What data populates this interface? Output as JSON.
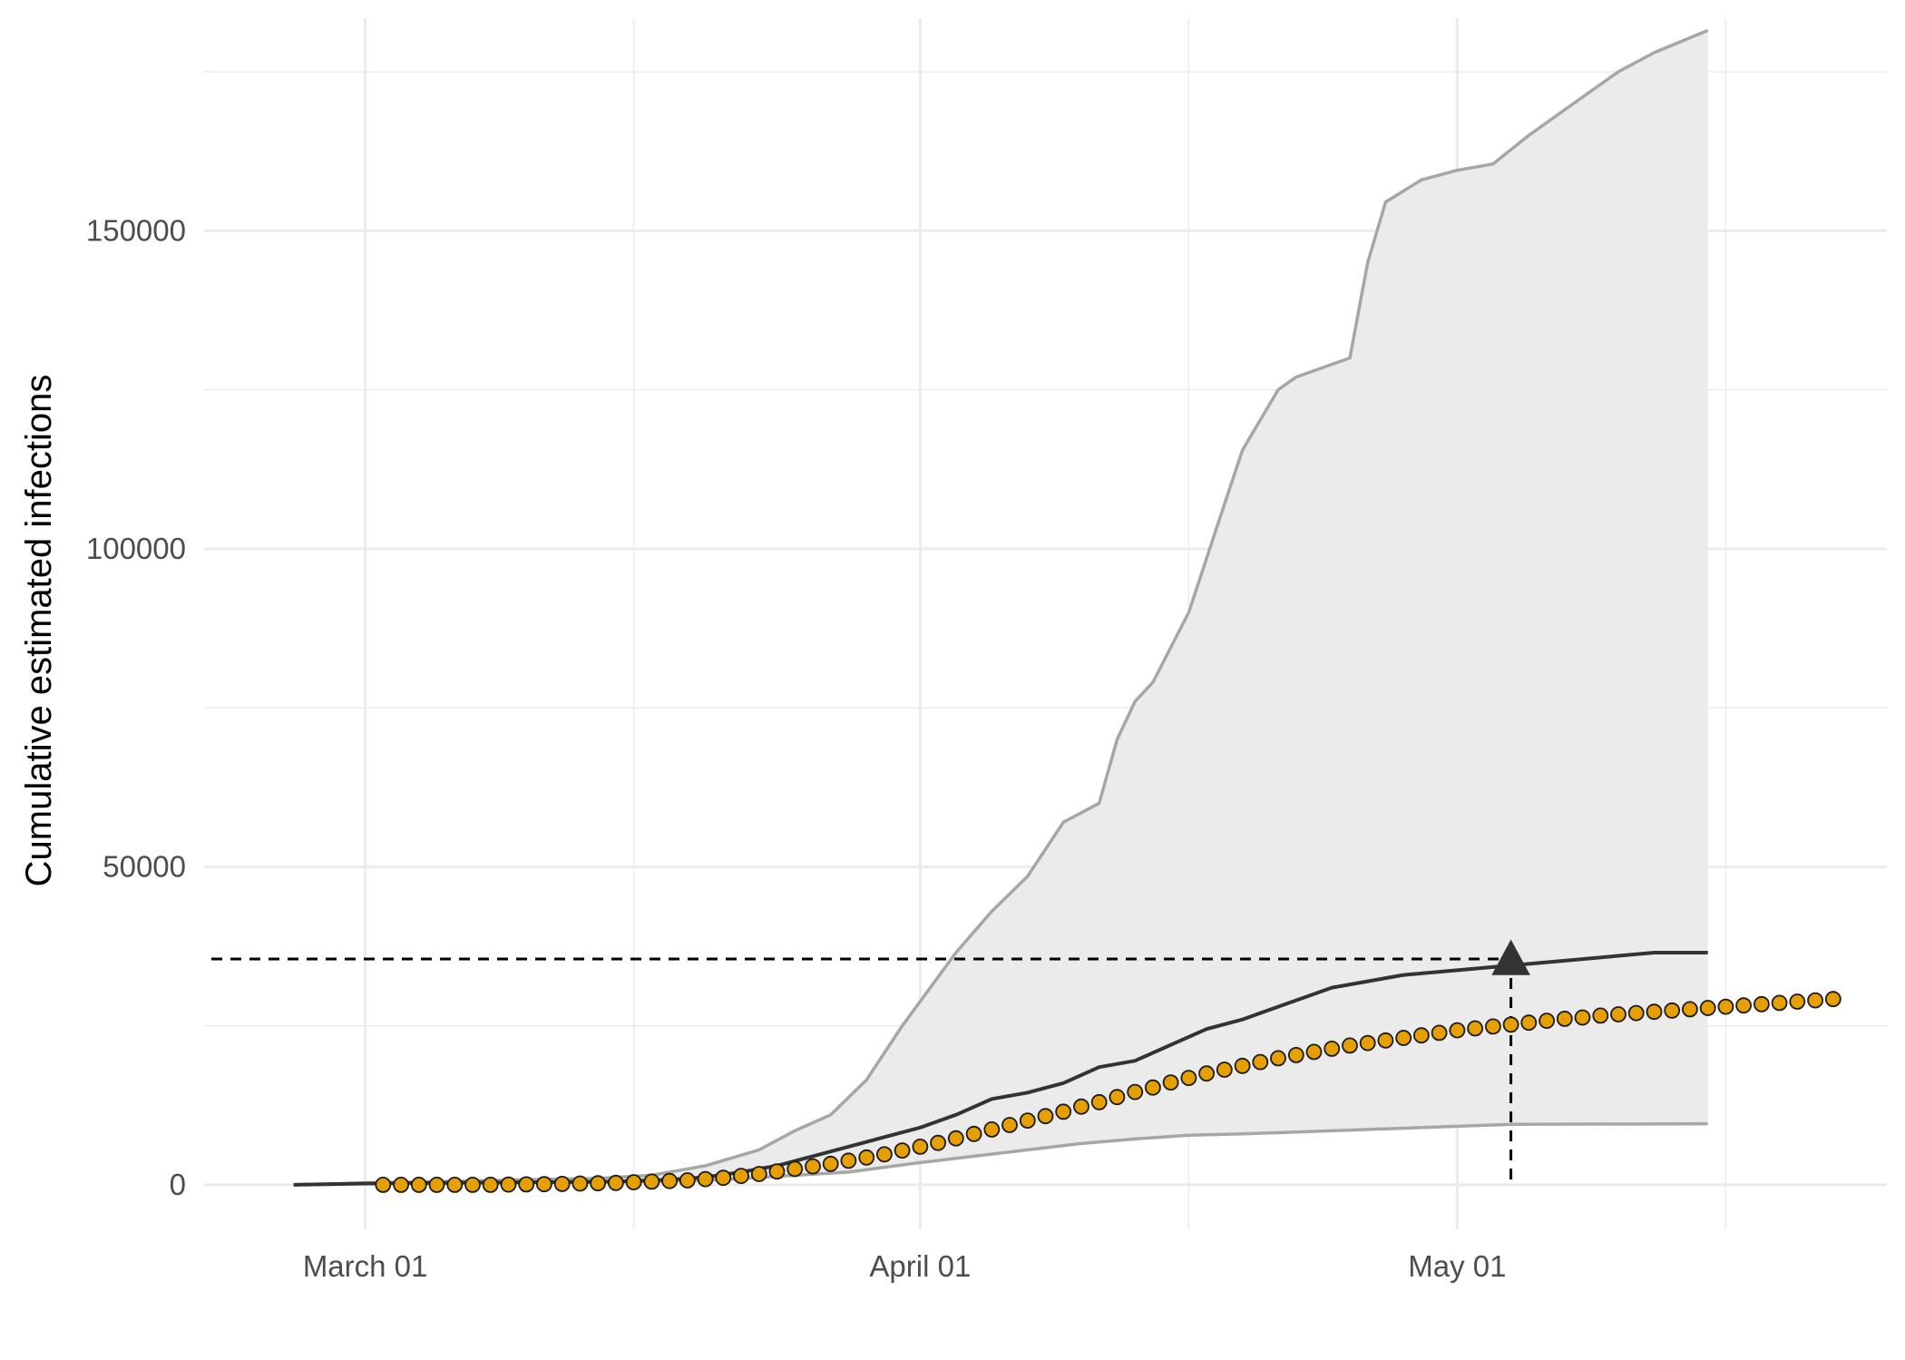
{
  "chart_data": {
    "type": "line",
    "title": "",
    "xlabel": "",
    "ylabel": "Cumulative estimated infections",
    "x_axis": {
      "type": "date",
      "range": [
        "2020-02-21",
        "2020-05-25"
      ],
      "ticks": [
        {
          "date": "2020-03-01",
          "label": "March 01"
        },
        {
          "date": "2020-04-01",
          "label": "April 01"
        },
        {
          "date": "2020-05-01",
          "label": "May 01"
        }
      ],
      "minor_gridlines": [
        "2020-03-16",
        "2020-04-16",
        "2020-05-16"
      ]
    },
    "y_axis": {
      "range": [
        -7000,
        182000
      ],
      "ticks": [
        0,
        50000,
        100000,
        150000
      ],
      "tick_labels": [
        "0",
        "50000",
        "100000",
        "150000"
      ],
      "minor_gridlines": [
        25000,
        75000,
        125000,
        175000
      ]
    },
    "grid": true,
    "legend": "none",
    "colors": {
      "band_fill": "#ebebeb",
      "band_edge": "#a6a6a6",
      "estimate_line": "#333333",
      "observed_point_fill": "#e69f00",
      "observed_point_edge": "#1a1a1a",
      "reference_line": "#000000",
      "marker": "#333333",
      "gridline": "#ebebeb"
    },
    "series": [
      {
        "role": "uncertainty-band-upper",
        "points": [
          [
            "2020-02-26",
            0
          ],
          [
            "2020-03-01",
            300
          ],
          [
            "2020-03-05",
            500
          ],
          [
            "2020-03-10",
            800
          ],
          [
            "2020-03-14",
            1000
          ],
          [
            "2020-03-17",
            1500
          ],
          [
            "2020-03-20",
            3000
          ],
          [
            "2020-03-23",
            5500
          ],
          [
            "2020-03-25",
            8500
          ],
          [
            "2020-03-27",
            11000
          ],
          [
            "2020-03-29",
            16500
          ],
          [
            "2020-03-31",
            25000
          ],
          [
            "2020-04-03",
            36500
          ],
          [
            "2020-04-05",
            43000
          ],
          [
            "2020-04-07",
            48500
          ],
          [
            "2020-04-09",
            57000
          ],
          [
            "2020-04-11",
            60000
          ],
          [
            "2020-04-12",
            70000
          ],
          [
            "2020-04-13",
            76000
          ],
          [
            "2020-04-14",
            79000
          ],
          [
            "2020-04-16",
            90000
          ],
          [
            "2020-04-18",
            107000
          ],
          [
            "2020-04-19",
            115500
          ],
          [
            "2020-04-21",
            125000
          ],
          [
            "2020-04-22",
            127000
          ],
          [
            "2020-04-24",
            129000
          ],
          [
            "2020-04-25",
            130000
          ],
          [
            "2020-04-26",
            145000
          ],
          [
            "2020-04-27",
            154500
          ],
          [
            "2020-04-29",
            158000
          ],
          [
            "2020-05-01",
            159500
          ],
          [
            "2020-05-03",
            160500
          ],
          [
            "2020-05-05",
            165000
          ],
          [
            "2020-05-07",
            169000
          ],
          [
            "2020-05-10",
            175000
          ],
          [
            "2020-05-12",
            178000
          ],
          [
            "2020-05-15",
            181500
          ]
        ]
      },
      {
        "role": "uncertainty-band-lower",
        "points": [
          [
            "2020-02-26",
            0
          ],
          [
            "2020-03-01",
            200
          ],
          [
            "2020-03-10",
            300
          ],
          [
            "2020-03-17",
            500
          ],
          [
            "2020-03-21",
            800
          ],
          [
            "2020-03-25",
            1500
          ],
          [
            "2020-03-28",
            2000
          ],
          [
            "2020-04-01",
            3500
          ],
          [
            "2020-04-04",
            4500
          ],
          [
            "2020-04-07",
            5500
          ],
          [
            "2020-04-10",
            6500
          ],
          [
            "2020-04-13",
            7200
          ],
          [
            "2020-04-16",
            7800
          ],
          [
            "2020-04-19",
            8000
          ],
          [
            "2020-04-22",
            8300
          ],
          [
            "2020-04-25",
            8600
          ],
          [
            "2020-04-28",
            8900
          ],
          [
            "2020-05-01",
            9200
          ],
          [
            "2020-05-04",
            9500
          ],
          [
            "2020-05-15",
            9600
          ]
        ]
      },
      {
        "role": "estimate",
        "points": [
          [
            "2020-02-26",
            0
          ],
          [
            "2020-03-01",
            200
          ],
          [
            "2020-03-05",
            300
          ],
          [
            "2020-03-10",
            400
          ],
          [
            "2020-03-15",
            500
          ],
          [
            "2020-03-18",
            800
          ],
          [
            "2020-03-20",
            1200
          ],
          [
            "2020-03-22",
            2000
          ],
          [
            "2020-03-24",
            3000
          ],
          [
            "2020-03-26",
            4500
          ],
          [
            "2020-03-28",
            6000
          ],
          [
            "2020-03-30",
            7500
          ],
          [
            "2020-04-01",
            9000
          ],
          [
            "2020-04-03",
            11000
          ],
          [
            "2020-04-05",
            13500
          ],
          [
            "2020-04-07",
            14500
          ],
          [
            "2020-04-09",
            16000
          ],
          [
            "2020-04-11",
            18500
          ],
          [
            "2020-04-13",
            19500
          ],
          [
            "2020-04-15",
            22000
          ],
          [
            "2020-04-17",
            24500
          ],
          [
            "2020-04-19",
            26000
          ],
          [
            "2020-04-21",
            28000
          ],
          [
            "2020-04-23",
            30000
          ],
          [
            "2020-04-24",
            31000
          ],
          [
            "2020-04-26",
            32000
          ],
          [
            "2020-04-28",
            33000
          ],
          [
            "2020-04-30",
            33500
          ],
          [
            "2020-05-02",
            34000
          ],
          [
            "2020-05-04",
            34500
          ],
          [
            "2020-05-06",
            35000
          ],
          [
            "2020-05-08",
            35500
          ],
          [
            "2020-05-10",
            36000
          ],
          [
            "2020-05-12",
            36500
          ],
          [
            "2020-05-15",
            36500
          ]
        ]
      },
      {
        "role": "observed",
        "start_date": "2020-03-02",
        "interval_days": 1,
        "values": [
          0,
          0,
          0,
          0,
          0,
          0,
          0,
          50,
          80,
          100,
          150,
          200,
          250,
          300,
          400,
          500,
          600,
          700,
          900,
          1100,
          1400,
          1700,
          2100,
          2500,
          2900,
          3300,
          3800,
          4300,
          4800,
          5400,
          6000,
          6600,
          7300,
          8000,
          8700,
          9400,
          10100,
          10800,
          11500,
          12300,
          13000,
          13800,
          14600,
          15300,
          16100,
          16800,
          17500,
          18100,
          18700,
          19300,
          19900,
          20400,
          20900,
          21400,
          21900,
          22300,
          22700,
          23100,
          23500,
          23900,
          24300,
          24600,
          24900,
          25200,
          25500,
          25800,
          26100,
          26300,
          26600,
          26800,
          27000,
          27200,
          27400,
          27600,
          27800,
          28000,
          28200,
          28400,
          28600,
          28800,
          29000,
          29200
        ]
      }
    ],
    "reference": {
      "date": "2020-05-04",
      "value": 35500
    }
  }
}
